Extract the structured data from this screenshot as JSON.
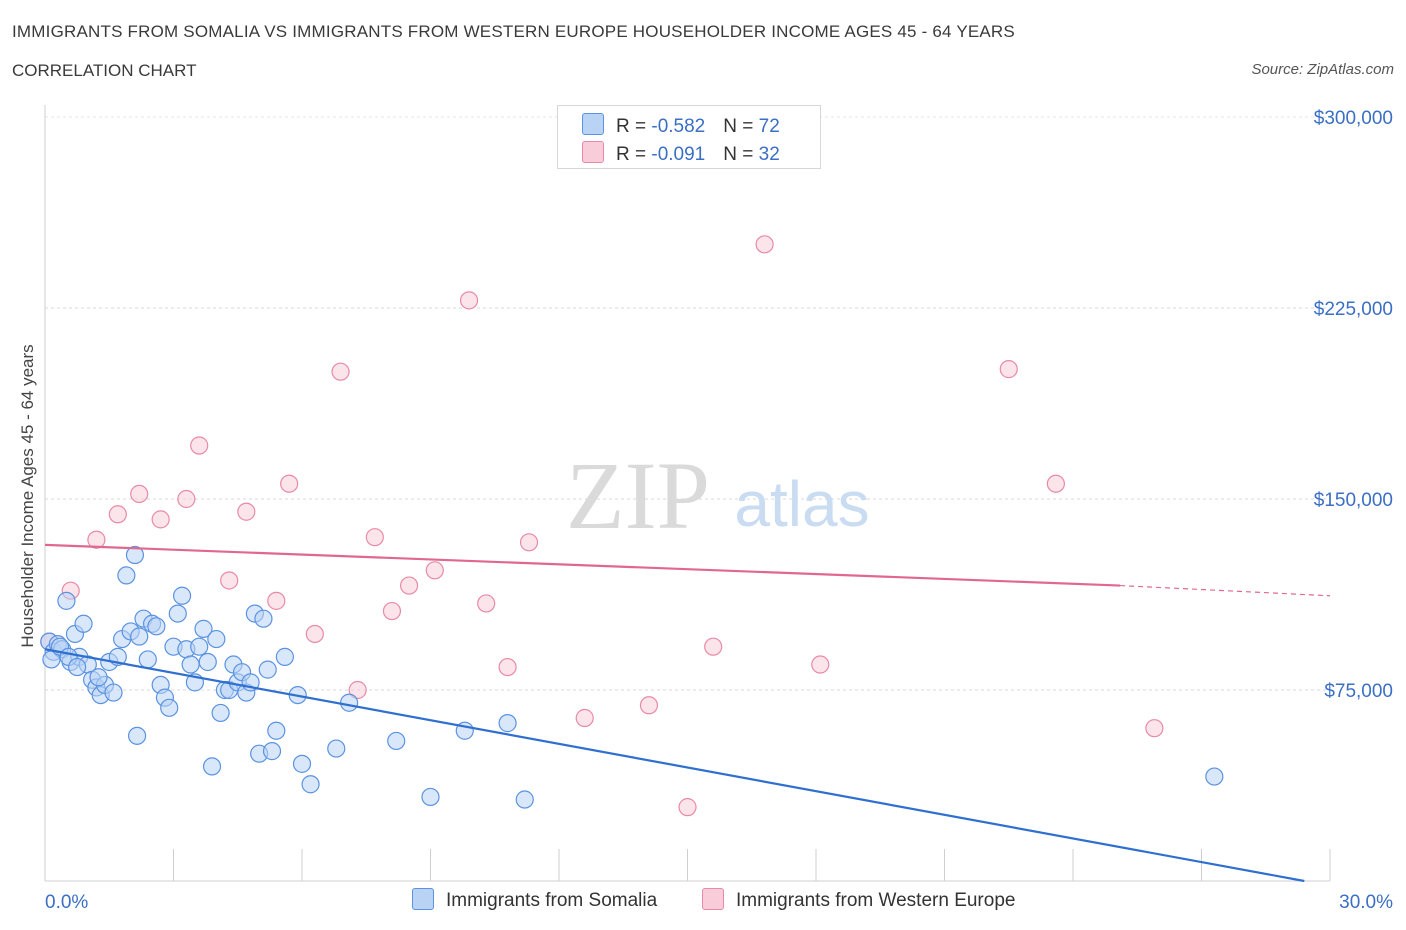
{
  "header": {
    "title": "IMMIGRANTS FROM SOMALIA VS IMMIGRANTS FROM WESTERN EUROPE HOUSEHOLDER INCOME AGES 45 - 64 YEARS",
    "subtitle": "CORRELATION CHART",
    "source": "Source: ZipAtlas.com"
  },
  "legend_top": {
    "row1": {
      "r_label": "R = ",
      "r_value": "-0.582",
      "n_label": "N = ",
      "n_value": "72"
    },
    "row2": {
      "r_label": "R = ",
      "r_value": "-0.091",
      "n_label": "N = ",
      "n_value": "32"
    }
  },
  "watermark": {
    "zip": "ZIP",
    "atlas": "atlas"
  },
  "colors": {
    "somalia": "#5b93e0",
    "somalia_fill": "#b9d3f5",
    "somalia_line": "#2f6fd0",
    "western_europe": "#e88aa6",
    "western_europe_fill": "#f8cdd9",
    "western_europe_line": "#e06890",
    "tick_text": "#3b6fc4"
  },
  "chart_data": {
    "type": "scatter",
    "title": "IMMIGRANTS FROM SOMALIA VS IMMIGRANTS FROM WESTERN EUROPE HOUSEHOLDER INCOME AGES 45 - 64 YEARS",
    "xlabel": "",
    "ylabel": "Householder Income Ages 45 - 64 years",
    "xlim": [
      0,
      30
    ],
    "ylim": [
      0,
      300000
    ],
    "x_tick_labels": [
      "0.0%",
      "30.0%"
    ],
    "y_ticks": [
      75000,
      150000,
      225000,
      300000
    ],
    "y_tick_labels": [
      "$75,000",
      "$150,000",
      "$225,000",
      "$300,000"
    ],
    "grid": true,
    "legend_position": "bottom",
    "series": [
      {
        "name": "Immigrants from Somalia",
        "R": -0.582,
        "N": 72,
        "trend": {
          "x": [
            0,
            29.4
          ],
          "y": [
            91000,
            0
          ]
        },
        "points": [
          [
            0.1,
            94000
          ],
          [
            0.2,
            90000
          ],
          [
            0.3,
            93000
          ],
          [
            0.4,
            91000
          ],
          [
            0.5,
            110000
          ],
          [
            0.6,
            86000
          ],
          [
            0.7,
            97000
          ],
          [
            0.8,
            88000
          ],
          [
            0.9,
            101000
          ],
          [
            1.0,
            85000
          ],
          [
            1.1,
            79000
          ],
          [
            1.2,
            76000
          ],
          [
            1.3,
            73000
          ],
          [
            1.4,
            77000
          ],
          [
            1.5,
            86000
          ],
          [
            1.6,
            74000
          ],
          [
            1.7,
            88000
          ],
          [
            1.8,
            95000
          ],
          [
            1.9,
            120000
          ],
          [
            2.0,
            98000
          ],
          [
            2.1,
            128000
          ],
          [
            2.2,
            96000
          ],
          [
            2.3,
            103000
          ],
          [
            2.4,
            87000
          ],
          [
            2.5,
            101000
          ],
          [
            2.6,
            100000
          ],
          [
            2.7,
            77000
          ],
          [
            2.8,
            72000
          ],
          [
            2.9,
            68000
          ],
          [
            3.0,
            92000
          ],
          [
            3.1,
            105000
          ],
          [
            3.2,
            112000
          ],
          [
            3.3,
            91000
          ],
          [
            3.4,
            85000
          ],
          [
            3.5,
            78000
          ],
          [
            3.6,
            92000
          ],
          [
            3.7,
            99000
          ],
          [
            3.8,
            86000
          ],
          [
            3.9,
            45000
          ],
          [
            4.0,
            95000
          ],
          [
            4.1,
            66000
          ],
          [
            4.2,
            75000
          ],
          [
            4.3,
            75000
          ],
          [
            4.4,
            85000
          ],
          [
            4.5,
            78000
          ],
          [
            4.6,
            82000
          ],
          [
            4.7,
            74000
          ],
          [
            4.8,
            78000
          ],
          [
            4.9,
            105000
          ],
          [
            5.0,
            50000
          ],
          [
            5.1,
            103000
          ],
          [
            5.2,
            83000
          ],
          [
            5.3,
            51000
          ],
          [
            5.4,
            59000
          ],
          [
            5.6,
            88000
          ],
          [
            5.9,
            73000
          ],
          [
            6.0,
            46000
          ],
          [
            6.2,
            38000
          ],
          [
            6.8,
            52000
          ],
          [
            7.1,
            70000
          ],
          [
            8.2,
            55000
          ],
          [
            9.0,
            33000
          ],
          [
            9.8,
            59000
          ],
          [
            10.8,
            62000
          ],
          [
            11.2,
            32000
          ],
          [
            27.3,
            41000
          ],
          [
            0.15,
            87000
          ],
          [
            0.35,
            92000
          ],
          [
            0.55,
            88000
          ],
          [
            0.75,
            84000
          ],
          [
            1.25,
            80000
          ],
          [
            2.15,
            57000
          ]
        ]
      },
      {
        "name": "Immigrants from Western Europe",
        "R": -0.091,
        "N": 32,
        "trend": {
          "x": [
            0,
            25.1
          ],
          "y": [
            132000,
            116000
          ]
        },
        "trend_dashed": {
          "x": [
            25.1,
            30
          ],
          "y": [
            116000,
            112000
          ]
        },
        "points": [
          [
            0.1,
            94000
          ],
          [
            0.6,
            114000
          ],
          [
            1.2,
            134000
          ],
          [
            1.7,
            144000
          ],
          [
            2.2,
            152000
          ],
          [
            2.7,
            142000
          ],
          [
            3.3,
            150000
          ],
          [
            3.6,
            171000
          ],
          [
            4.3,
            118000
          ],
          [
            4.7,
            145000
          ],
          [
            5.4,
            110000
          ],
          [
            5.7,
            156000
          ],
          [
            6.3,
            97000
          ],
          [
            6.9,
            200000
          ],
          [
            7.3,
            75000
          ],
          [
            7.7,
            135000
          ],
          [
            8.1,
            106000
          ],
          [
            8.5,
            116000
          ],
          [
            9.1,
            122000
          ],
          [
            9.9,
            228000
          ],
          [
            10.3,
            109000
          ],
          [
            10.8,
            84000
          ],
          [
            11.3,
            133000
          ],
          [
            12.6,
            64000
          ],
          [
            14.1,
            69000
          ],
          [
            15.0,
            29000
          ],
          [
            15.6,
            92000
          ],
          [
            16.8,
            250000
          ],
          [
            18.1,
            85000
          ],
          [
            22.5,
            201000
          ],
          [
            23.6,
            156000
          ],
          [
            25.9,
            60000
          ]
        ]
      }
    ]
  }
}
